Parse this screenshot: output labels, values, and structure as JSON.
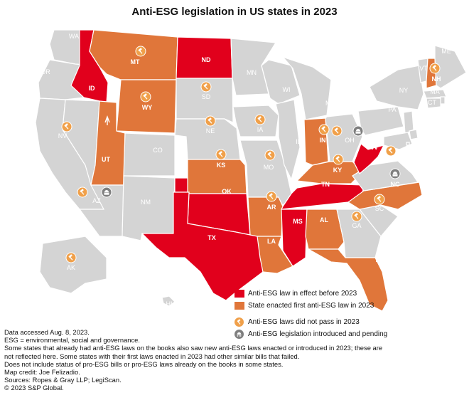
{
  "title": "Anti-ESG legislation in US states in 2023",
  "colors": {
    "none": "#d4d4d4",
    "before_2023": "#e1001c",
    "first_2023": "#e0763a",
    "failed_icon": "#f0a04a",
    "pending_icon": "#7f7f7f",
    "border": "#ffffff"
  },
  "states": [
    {
      "abbr": "WA",
      "status": "none"
    },
    {
      "abbr": "OR",
      "status": "none"
    },
    {
      "abbr": "CA",
      "status": "none"
    },
    {
      "abbr": "NV",
      "status": "none",
      "failed": true
    },
    {
      "abbr": "ID",
      "status": "before_2023"
    },
    {
      "abbr": "MT",
      "status": "first_2023",
      "failed": true
    },
    {
      "abbr": "WY",
      "status": "first_2023",
      "failed": true
    },
    {
      "abbr": "UT",
      "status": "first_2023"
    },
    {
      "abbr": "AZ",
      "status": "none",
      "failed": true,
      "pending": true
    },
    {
      "abbr": "CO",
      "status": "none"
    },
    {
      "abbr": "NM",
      "status": "none"
    },
    {
      "abbr": "ND",
      "status": "before_2023"
    },
    {
      "abbr": "SD",
      "status": "none",
      "failed": true
    },
    {
      "abbr": "NE",
      "status": "none",
      "failed": true
    },
    {
      "abbr": "KS",
      "status": "first_2023",
      "failed": true
    },
    {
      "abbr": "OK",
      "status": "before_2023"
    },
    {
      "abbr": "TX",
      "status": "before_2023"
    },
    {
      "abbr": "MN",
      "status": "none"
    },
    {
      "abbr": "IA",
      "status": "none",
      "failed": true
    },
    {
      "abbr": "MO",
      "status": "none",
      "failed": true
    },
    {
      "abbr": "AR",
      "status": "first_2023",
      "failed": true
    },
    {
      "abbr": "LA",
      "status": "first_2023"
    },
    {
      "abbr": "WI",
      "status": "none"
    },
    {
      "abbr": "IL",
      "status": "none"
    },
    {
      "abbr": "MI",
      "status": "none"
    },
    {
      "abbr": "IN",
      "status": "first_2023",
      "failed": true
    },
    {
      "abbr": "OH",
      "status": "none",
      "failed": true,
      "pending": true
    },
    {
      "abbr": "KY",
      "status": "first_2023",
      "failed": true
    },
    {
      "abbr": "TN",
      "status": "before_2023"
    },
    {
      "abbr": "MS",
      "status": "before_2023"
    },
    {
      "abbr": "AL",
      "status": "first_2023"
    },
    {
      "abbr": "GA",
      "status": "none",
      "failed": true
    },
    {
      "abbr": "FL",
      "status": "first_2023"
    },
    {
      "abbr": "SC",
      "status": "none",
      "failed": true
    },
    {
      "abbr": "NC",
      "status": "first_2023",
      "pending": true
    },
    {
      "abbr": "VA",
      "status": "none",
      "failed": true
    },
    {
      "abbr": "WV",
      "status": "before_2023"
    },
    {
      "abbr": "PA",
      "status": "none"
    },
    {
      "abbr": "NY",
      "status": "none"
    },
    {
      "abbr": "VT",
      "status": "none"
    },
    {
      "abbr": "NH",
      "status": "first_2023",
      "failed": true
    },
    {
      "abbr": "ME",
      "status": "none"
    },
    {
      "abbr": "MA",
      "status": "none"
    },
    {
      "abbr": "RI",
      "status": "none"
    },
    {
      "abbr": "CT",
      "status": "none"
    },
    {
      "abbr": "NJ",
      "status": "none"
    },
    {
      "abbr": "DE",
      "status": "none"
    },
    {
      "abbr": "MD",
      "status": "none"
    },
    {
      "abbr": "DC",
      "status": "none"
    },
    {
      "abbr": "AK",
      "status": "none",
      "failed": true
    },
    {
      "abbr": "HI",
      "status": "none"
    }
  ],
  "legend": {
    "before_2023": "Anti-ESG law in effect before 2023",
    "first_2023": "State enacted first anti-ESG law in 2023",
    "failed": "Anti-ESG laws did not pass in 2023",
    "pending": "Anti-ESG legislation introduced and pending"
  },
  "footnotes": [
    "Data accessed Aug. 8, 2023.",
    "ESG = environmental, social and governance.",
    "Some states that already had anti-ESG laws on the books also saw new anti-ESG laws enacted or introduced in 2023; these are",
    "not reflected here. Some states with their first laws enacted in 2023 had other similar bills that failed.",
    "Does not include status of pro-ESG bills or pro-ESG laws already on the books in some states.",
    "Map credit: Joe Felizadio.",
    "Sources: Ropes & Gray LLP; LegiScan.",
    "© 2023 S&P Global."
  ]
}
